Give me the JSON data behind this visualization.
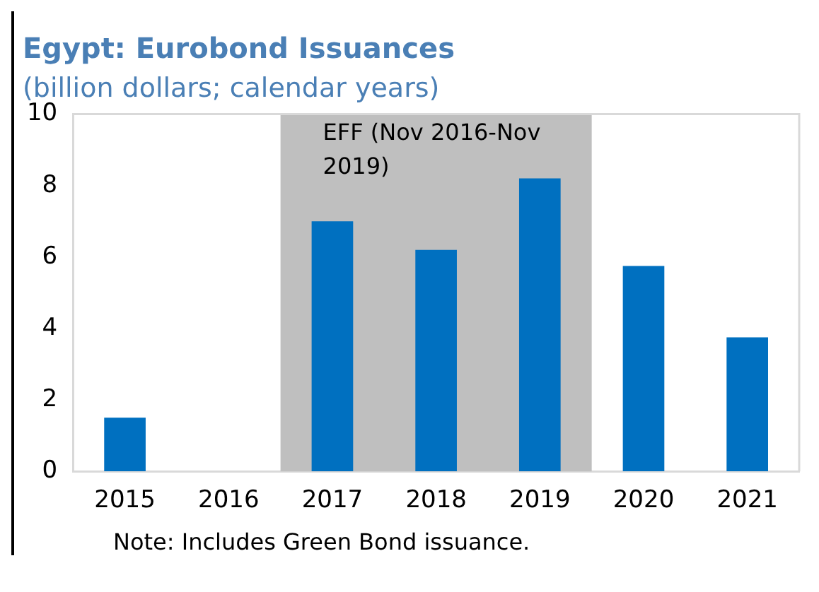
{
  "chart_data": {
    "type": "bar",
    "title": "Egypt: Eurobond Issuances",
    "subtitle": "(billion dollars; calendar years)",
    "categories": [
      "2015",
      "2016",
      "2017",
      "2018",
      "2019",
      "2020",
      "2021"
    ],
    "values": [
      1.5,
      0,
      7.0,
      6.2,
      8.2,
      5.75,
      3.75
    ],
    "color": "#0070c0",
    "ylim": [
      0,
      10
    ],
    "yticks": [
      0,
      2,
      4,
      6,
      8,
      10
    ],
    "grid": false,
    "legend": false,
    "bands": [
      {
        "axis": "x",
        "from": "2017",
        "to": "2019",
        "label": "EFF (Nov 2016-Nov 2019)",
        "color": "#bfbfbf"
      }
    ],
    "annotations": [
      "Note: Includes Green Bond issuance."
    ]
  }
}
